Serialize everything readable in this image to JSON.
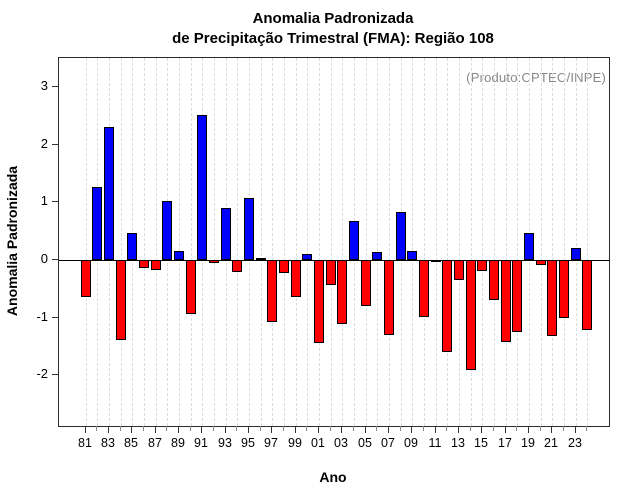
{
  "title": {
    "line1": "Anomalia Padronizada",
    "line2": "de Precipitação Trimestral (FMA): Região 108"
  },
  "annotation": "(Produto:CPTEC/INPE)",
  "axes": {
    "xlabel": "Ano",
    "ylabel": "Anomalia Padronizada",
    "y_ticks": [
      3,
      2,
      1,
      0,
      -1,
      -2
    ],
    "x_tick_labels": [
      "81",
      "83",
      "85",
      "87",
      "89",
      "91",
      "93",
      "95",
      "97",
      "99",
      "01",
      "03",
      "05",
      "07",
      "09",
      "11",
      "13",
      "15",
      "17",
      "19",
      "21",
      "23"
    ]
  },
  "colors": {
    "positive_bar": "#0000ff",
    "negative_bar": "#ff0000",
    "bar_border": "#000000",
    "grid": "#dcdcdc",
    "annotation_text": "#888888",
    "axis": "#2b2b2b"
  },
  "chart_data": {
    "type": "bar",
    "title": "Anomalia Padronizada de Precipitação Trimestral (FMA): Região 108",
    "xlabel": "Ano",
    "ylabel": "Anomalia Padronizada",
    "x": [
      "81",
      "82",
      "83",
      "84",
      "85",
      "86",
      "87",
      "88",
      "89",
      "90",
      "91",
      "92",
      "93",
      "94",
      "95",
      "96",
      "97",
      "98",
      "99",
      "00",
      "01",
      "02",
      "03",
      "04",
      "05",
      "06",
      "07",
      "08",
      "09",
      "10",
      "11",
      "12",
      "13",
      "14",
      "15",
      "16",
      "17",
      "18",
      "19",
      "20",
      "21",
      "22",
      "23",
      "24"
    ],
    "values": [
      -0.64,
      1.26,
      2.31,
      -1.38,
      0.47,
      -0.14,
      -0.18,
      1.03,
      0.15,
      -0.94,
      2.51,
      -0.05,
      0.9,
      -0.2,
      1.08,
      0.02,
      -1.07,
      -0.22,
      -0.64,
      0.1,
      -1.44,
      -0.44,
      -1.11,
      0.68,
      -0.8,
      0.14,
      -1.3,
      0.83,
      0.15,
      -0.99,
      -0.04,
      -1.59,
      -0.34,
      -1.91,
      -0.19,
      -0.7,
      -1.43,
      -1.25,
      0.46,
      -0.08,
      -1.32,
      -1.01,
      0.2,
      -1.21
    ],
    "ylim": [
      -2.88,
      3.5
    ],
    "y_ticks": [
      3,
      2,
      1,
      0,
      -1,
      -2
    ],
    "grid": "vertical-dashed-per-year",
    "zero_line": true,
    "legend": "none",
    "positive_color": "#0000ff",
    "negative_color": "#ff0000"
  }
}
